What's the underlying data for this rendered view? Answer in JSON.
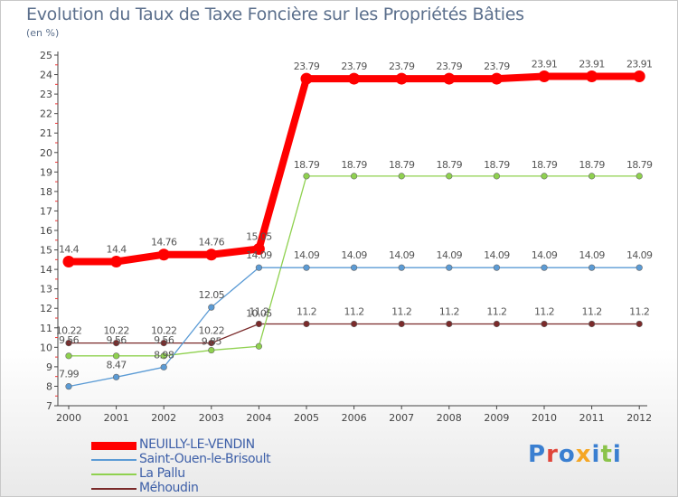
{
  "chart_data": {
    "type": "line",
    "title": "Evolution du Taux de Taxe Foncière sur les Propriétés Bâties",
    "ylabel": "(en %)",
    "xlabel": "",
    "categories": [
      "2000",
      "2001",
      "2002",
      "2003",
      "2004",
      "2005",
      "2006",
      "2007",
      "2008",
      "2009",
      "2010",
      "2011",
      "2012"
    ],
    "ylim": [
      7,
      25
    ],
    "yticks": [
      7,
      8,
      9,
      10,
      11,
      12,
      13,
      14,
      15,
      16,
      17,
      18,
      19,
      20,
      21,
      22,
      23,
      24,
      25
    ],
    "grid": false,
    "legend_position": "bottom-left",
    "series": [
      {
        "name": "NEUILLY-LE-VENDIN",
        "color": "#ff0000",
        "values": [
          14.4,
          14.4,
          14.76,
          14.76,
          15.05,
          23.79,
          23.79,
          23.79,
          23.79,
          23.79,
          23.91,
          23.91,
          23.91
        ],
        "labels": [
          "14.4",
          "14.4",
          "14.76",
          "14.76",
          "15.05",
          "23.79",
          "23.79",
          "23.79",
          "23.79",
          "23.79",
          "23.91",
          "23.91",
          "23.91"
        ]
      },
      {
        "name": "Saint-Ouen-le-Brisoult",
        "color": "#5b9bd5",
        "values": [
          7.99,
          8.47,
          8.98,
          12.05,
          14.09,
          14.09,
          14.09,
          14.09,
          14.09,
          14.09,
          14.09,
          14.09,
          14.09
        ],
        "labels": [
          "7.99",
          "8.47",
          "8.98",
          "12.05",
          "14.09",
          "14.09",
          "14.09",
          "14.09",
          "14.09",
          "14.09",
          "14.09",
          "14.09",
          "14.09"
        ]
      },
      {
        "name": "La Pallu",
        "color": "#8fd14f",
        "values": [
          9.56,
          9.56,
          9.56,
          9.85,
          10.05,
          18.79,
          18.79,
          18.79,
          18.79,
          18.79,
          18.79,
          18.79,
          18.79
        ],
        "labels": [
          "9.56",
          "9.56",
          "9.56",
          "9.85",
          "10.05",
          "18.79",
          "18.79",
          "18.79",
          "18.79",
          "18.79",
          "18.79",
          "18.79",
          "18.79"
        ]
      },
      {
        "name": "Méhoudin",
        "color": "#7a2a2a",
        "values": [
          10.22,
          10.22,
          10.22,
          10.22,
          11.2,
          11.2,
          11.2,
          11.2,
          11.2,
          11.2,
          11.2,
          11.2,
          11.2
        ],
        "labels": [
          "10.22",
          "10.22",
          "10.22",
          "10.22",
          "11.2",
          "11.2",
          "11.2",
          "11.2",
          "11.2",
          "11.2",
          "11.2",
          "11.2",
          "11.2"
        ]
      }
    ]
  },
  "logo": {
    "text": "Proxiti",
    "colors": [
      "#3a7fd1",
      "#e0453a",
      "#3a7fd1",
      "#f5a623",
      "#3a7fd1",
      "#8bc34a",
      "#3a7fd1"
    ]
  }
}
